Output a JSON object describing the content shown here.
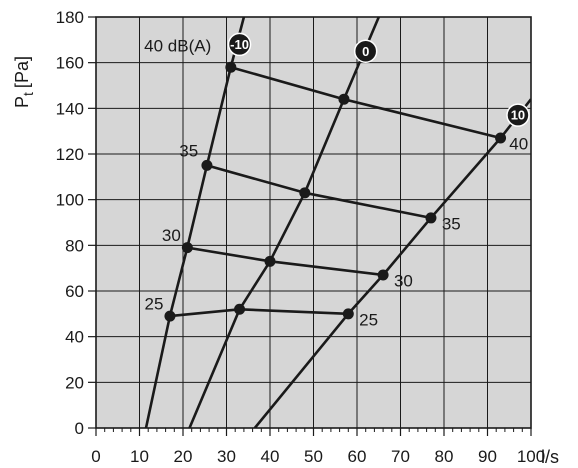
{
  "chart_data": {
    "type": "line",
    "ylabel": "P",
    "ylabel_subscript": "t",
    "ylabel_unit": "[Pa]",
    "xlabel": "l/s",
    "xlim": [
      0,
      100
    ],
    "ylim": [
      0,
      180
    ],
    "x_ticks": [
      0,
      10,
      20,
      30,
      40,
      50,
      60,
      70,
      80,
      90,
      100
    ],
    "y_ticks": [
      0,
      20,
      40,
      60,
      80,
      100,
      120,
      140,
      160,
      180
    ],
    "x_minor_step": 2,
    "grid": true,
    "colors": {
      "plot_background": "#d6d6d6",
      "line": "#1a1a1a",
      "badge": "#1a1a1a"
    },
    "damper_series": [
      {
        "name": "-10",
        "points": [
          [
            11.5,
            0
          ],
          [
            17,
            49
          ],
          [
            21,
            79
          ],
          [
            25.5,
            115
          ],
          [
            31,
            158
          ],
          [
            34,
            180
          ]
        ]
      },
      {
        "name": "0",
        "points": [
          [
            21.5,
            0
          ],
          [
            33,
            52
          ],
          [
            40,
            73
          ],
          [
            48,
            103
          ],
          [
            57,
            144
          ],
          [
            65,
            180
          ]
        ]
      },
      {
        "name": "10",
        "points": [
          [
            36.5,
            0
          ],
          [
            58,
            50
          ],
          [
            66,
            67
          ],
          [
            77,
            92
          ],
          [
            93,
            127
          ],
          [
            100,
            144
          ]
        ]
      }
    ],
    "sound_series": [
      {
        "name": "40",
        "points": [
          [
            31,
            158
          ],
          [
            57,
            144
          ],
          [
            93,
            127
          ]
        ]
      },
      {
        "name": "35",
        "points": [
          [
            25.5,
            115
          ],
          [
            48,
            103
          ],
          [
            77,
            92
          ]
        ]
      },
      {
        "name": "30",
        "points": [
          [
            21,
            79
          ],
          [
            40,
            73
          ],
          [
            66,
            67
          ]
        ]
      },
      {
        "name": "25",
        "points": [
          [
            17,
            49
          ],
          [
            33,
            52
          ],
          [
            58,
            50
          ]
        ]
      }
    ],
    "sound_labels": [
      {
        "text": "40 dB(A)",
        "x": 26.5,
        "y": 165,
        "anchor": "end"
      },
      {
        "text": "35",
        "x": 23.5,
        "y": 119,
        "anchor": "end"
      },
      {
        "text": "30",
        "x": 19.5,
        "y": 82,
        "anchor": "end"
      },
      {
        "text": "25",
        "x": 15.5,
        "y": 52,
        "anchor": "end"
      },
      {
        "text": "40",
        "x": 95,
        "y": 122,
        "anchor": "start"
      },
      {
        "text": "35",
        "x": 79.5,
        "y": 87,
        "anchor": "start"
      },
      {
        "text": "30",
        "x": 68.5,
        "y": 62,
        "anchor": "start"
      },
      {
        "text": "25",
        "x": 60.5,
        "y": 45,
        "anchor": "start"
      }
    ],
    "damper_badges": [
      {
        "text": "-10",
        "x": 33,
        "y": 168
      },
      {
        "text": "0",
        "x": 62,
        "y": 165
      },
      {
        "text": "10",
        "x": 97,
        "y": 137
      }
    ],
    "markers": [
      [
        31,
        158
      ],
      [
        57,
        144
      ],
      [
        93,
        127
      ],
      [
        25.5,
        115
      ],
      [
        48,
        103
      ],
      [
        77,
        92
      ],
      [
        21,
        79
      ],
      [
        40,
        73
      ],
      [
        66,
        67
      ],
      [
        17,
        49
      ],
      [
        33,
        52
      ],
      [
        58,
        50
      ]
    ]
  }
}
